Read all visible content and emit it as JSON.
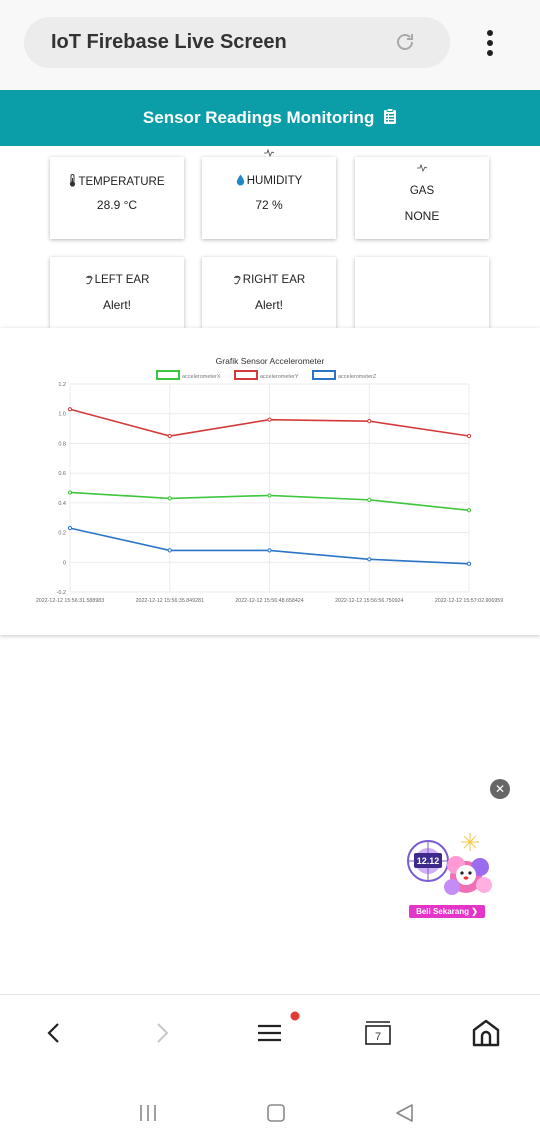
{
  "browser": {
    "url_title": "IoT Firebase Live Screen",
    "icons": {
      "reload": "reload-icon",
      "menu": "more-vert-icon"
    }
  },
  "header": {
    "title": "Sensor Readings Monitoring",
    "icon": "clipboard-icon"
  },
  "cards": [
    {
      "label": "TEMPERATURE",
      "value": "28.9 °C",
      "icon": "thermometer-icon"
    },
    {
      "label": "HUMIDITY",
      "value": "72 %",
      "icon": "water-drop-icon"
    },
    {
      "label": "GAS",
      "value": "NONE",
      "icon": "pulse-icon"
    },
    {
      "label": "LEFT EAR",
      "value": "Alert!",
      "icon": "ear-icon"
    },
    {
      "label": "RIGHT EAR",
      "value": "Alert!",
      "icon": "ear-icon"
    },
    {
      "label": "",
      "value": ""
    }
  ],
  "chart_data": {
    "type": "line",
    "title": "Grafik Sensor Accelerometer",
    "xlabel": "",
    "ylabel": "",
    "x": [
      "2022-12-12 15:56:31.588983",
      "2022-12-12 15:56:35.849281",
      "2022-12-12 15:56:48.658424",
      "2022-12-12 15:56:56.750924",
      "2022-12-12 15:57:02.906959"
    ],
    "series": [
      {
        "name": "accelerometerX",
        "color": "#3ec63e",
        "values": [
          0.47,
          0.43,
          0.45,
          0.42,
          0.35
        ]
      },
      {
        "name": "accelerometerY",
        "color": "#d43a3a",
        "values": [
          1.03,
          0.85,
          0.96,
          0.95,
          0.85
        ]
      },
      {
        "name": "accelerometerZ",
        "color": "#2b74c8",
        "values": [
          0.23,
          0.08,
          0.08,
          0.02,
          -0.01
        ]
      }
    ],
    "yticks": [
      "1.2",
      "1.0",
      "0.8",
      "0.6",
      "0.4",
      "0.2",
      "0",
      "-0.2"
    ],
    "ylim": [
      -0.2,
      1.2
    ],
    "grid": true,
    "legend": "top-center"
  },
  "ad": {
    "close_label": "✕",
    "badge": "12.12",
    "cta": "Beli Sekarang ❯"
  },
  "toolbar": {
    "tab_count": "7",
    "icons": [
      "back-icon",
      "forward-icon",
      "hamburger-menu-icon",
      "tabs-icon",
      "home-icon"
    ],
    "notification_color": "#e53935"
  },
  "system_nav": {
    "icons": [
      "recents-icon",
      "home-square-icon",
      "back-triangle-icon"
    ]
  }
}
